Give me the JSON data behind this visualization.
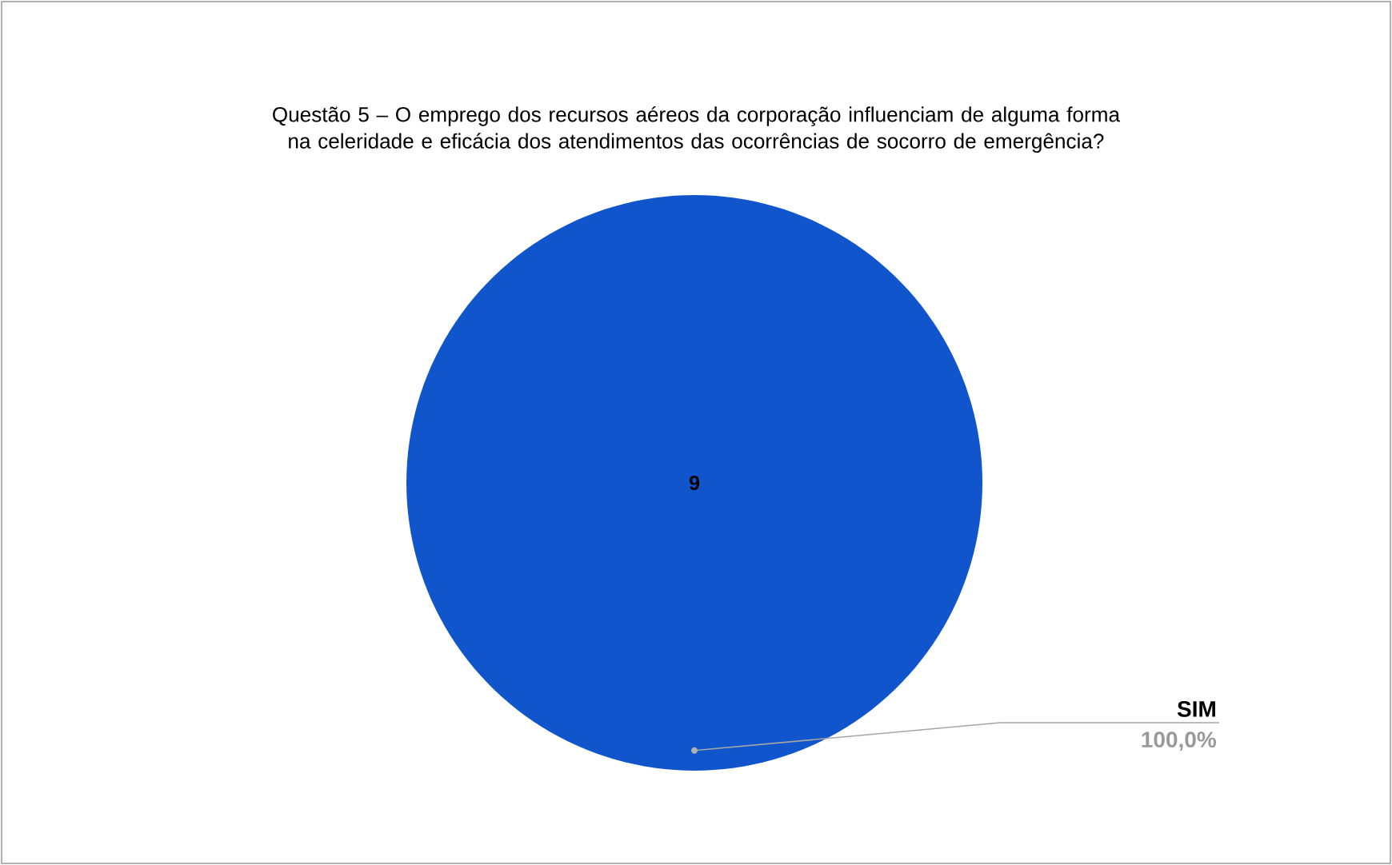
{
  "chart_data": {
    "type": "pie",
    "title": "Questão 5 – O emprego dos recursos aéreos da corporação influenciam de alguma forma na celeridade e eficácia dos atendimentos das ocorrências de socorro de emergência?",
    "categories": [
      "SIM"
    ],
    "values": [
      9
    ],
    "colors": [
      "#1155cc"
    ],
    "data_labels": true,
    "annotations": [
      "100,0%"
    ]
  }
}
